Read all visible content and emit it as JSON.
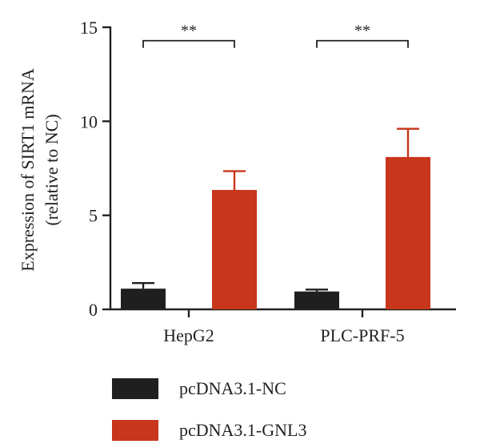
{
  "chart_data": {
    "type": "bar",
    "title": "",
    "xlabel": "",
    "ylabel_lines": [
      "Expression of SIRT1 mRNA",
      "(relative to NC)"
    ],
    "ylim": [
      0,
      15
    ],
    "yticks": [
      0,
      5,
      10,
      15
    ],
    "categories": [
      "HepG2",
      "PLC-PRF-5"
    ],
    "series": [
      {
        "name": "pcDNA3.1-NC",
        "color": "#1f1f1f",
        "values": [
          1.1,
          0.95
        ],
        "errors": [
          0.3,
          0.1
        ]
      },
      {
        "name": "pcDNA3.1-GNL3",
        "color": "#c8361b",
        "values": [
          6.35,
          8.1
        ],
        "errors": [
          1.0,
          1.5
        ]
      }
    ],
    "significance": [
      {
        "category_index": 0,
        "label": "**",
        "y": 14.5
      },
      {
        "category_index": 1,
        "label": "**",
        "y": 14.5
      }
    ],
    "legend_position": "bottom-left",
    "grid": false
  }
}
